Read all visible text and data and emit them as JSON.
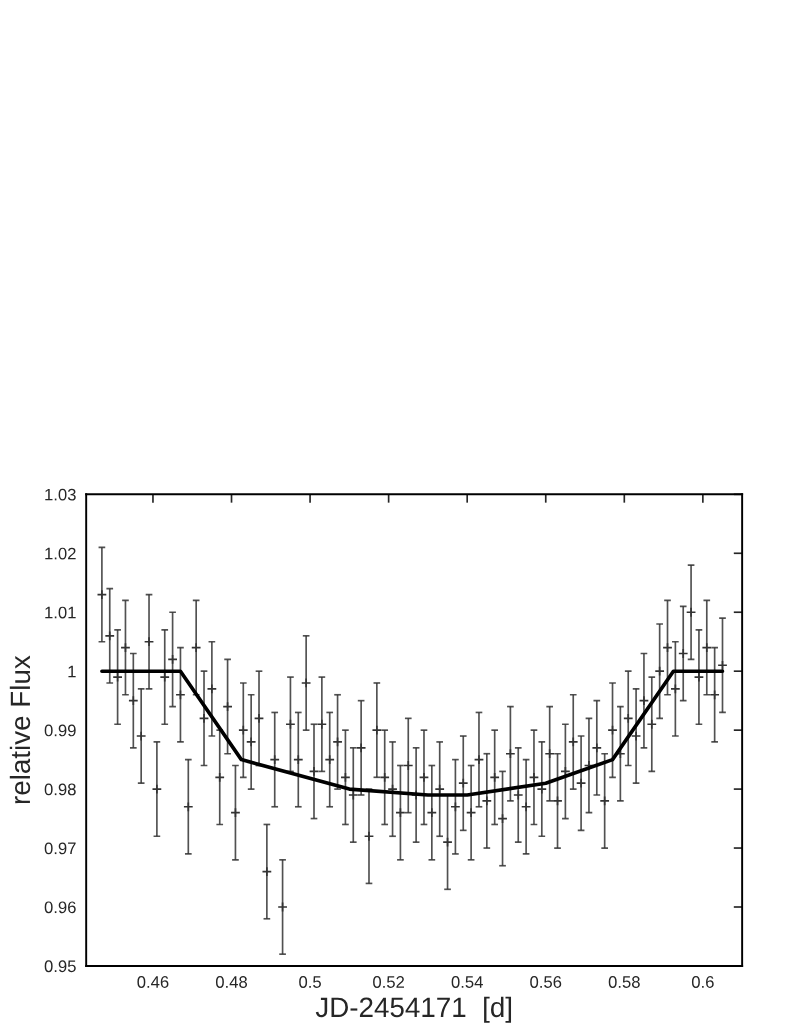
{
  "chart_data": {
    "type": "scatter",
    "xlabel": "JD-2454171  [d]",
    "ylabel": "relative Flux",
    "xlim": [
      0.443,
      0.61
    ],
    "ylim": [
      0.95,
      1.03
    ],
    "xticks": [
      0.46,
      0.48,
      0.5,
      0.52,
      0.54,
      0.56,
      0.58,
      0.6
    ],
    "yticks": [
      0.95,
      0.96,
      0.97,
      0.98,
      0.99,
      1,
      1.01,
      1.02,
      1.03
    ],
    "series": [
      {
        "color": "#333333",
        "marker": "cross",
        "x": [
          0.447,
          0.449,
          0.451,
          0.453,
          0.455,
          0.457,
          0.459,
          0.461,
          0.463,
          0.465,
          0.467,
          0.469,
          0.471,
          0.473,
          0.475,
          0.477,
          0.479,
          0.481,
          0.483,
          0.485,
          0.487,
          0.489,
          0.491,
          0.493,
          0.495,
          0.497,
          0.499,
          0.501,
          0.503,
          0.505,
          0.507,
          0.509,
          0.511,
          0.513,
          0.515,
          0.517,
          0.519,
          0.521,
          0.523,
          0.525,
          0.527,
          0.529,
          0.531,
          0.533,
          0.535,
          0.537,
          0.539,
          0.541,
          0.543,
          0.545,
          0.547,
          0.549,
          0.551,
          0.553,
          0.555,
          0.557,
          0.559,
          0.561,
          0.563,
          0.565,
          0.567,
          0.569,
          0.571,
          0.573,
          0.575,
          0.577,
          0.579,
          0.581,
          0.583,
          0.585,
          0.587,
          0.589,
          0.591,
          0.593,
          0.595,
          0.597,
          0.599,
          0.601,
          0.603,
          0.605
        ],
        "values": [
          1.013,
          1.006,
          0.999,
          1.004,
          0.995,
          0.989,
          1.005,
          0.98,
          0.999,
          1.002,
          0.996,
          0.977,
          1.004,
          0.992,
          0.997,
          0.982,
          0.994,
          0.976,
          0.99,
          0.988,
          0.992,
          0.966,
          0.985,
          0.96,
          0.991,
          0.985,
          0.998,
          0.983,
          0.991,
          0.985,
          0.988,
          0.982,
          0.979,
          0.987,
          0.972,
          0.99,
          0.982,
          0.98,
          0.976,
          0.984,
          0.979,
          0.982,
          0.976,
          0.98,
          0.971,
          0.977,
          0.981,
          0.976,
          0.985,
          0.978,
          0.982,
          0.975,
          0.986,
          0.979,
          0.977,
          0.982,
          0.98,
          0.986,
          0.978,
          0.983,
          0.988,
          0.981,
          0.984,
          0.987,
          0.978,
          0.99,
          0.986,
          0.992,
          0.989,
          0.995,
          0.991,
          1.0,
          1.004,
          0.997,
          1.003,
          1.01,
          0.999,
          1.004,
          0.996,
          1.001
        ],
        "errors": [
          0.008,
          0.008,
          0.008,
          0.008,
          0.008,
          0.008,
          0.008,
          0.008,
          0.008,
          0.008,
          0.008,
          0.008,
          0.008,
          0.008,
          0.008,
          0.008,
          0.008,
          0.008,
          0.008,
          0.008,
          0.008,
          0.008,
          0.008,
          0.008,
          0.008,
          0.008,
          0.008,
          0.008,
          0.008,
          0.008,
          0.008,
          0.008,
          0.008,
          0.008,
          0.008,
          0.008,
          0.008,
          0.008,
          0.008,
          0.008,
          0.008,
          0.008,
          0.008,
          0.008,
          0.008,
          0.008,
          0.008,
          0.008,
          0.008,
          0.008,
          0.008,
          0.008,
          0.008,
          0.008,
          0.008,
          0.008,
          0.008,
          0.008,
          0.008,
          0.008,
          0.008,
          0.008,
          0.008,
          0.008,
          0.008,
          0.008,
          0.008,
          0.008,
          0.008,
          0.008,
          0.008,
          0.008,
          0.008,
          0.008,
          0.008,
          0.008,
          0.008,
          0.008,
          0.008,
          0.008
        ]
      },
      {
        "type": "line",
        "color": "#000000",
        "marker": "none",
        "x": [
          0.447,
          0.467,
          0.4825,
          0.51,
          0.53,
          0.54,
          0.56,
          0.577,
          0.5925,
          0.605
        ],
        "values": [
          1.0,
          1.0,
          0.985,
          0.98,
          0.979,
          0.979,
          0.981,
          0.985,
          1.0,
          1.0
        ]
      }
    ]
  }
}
